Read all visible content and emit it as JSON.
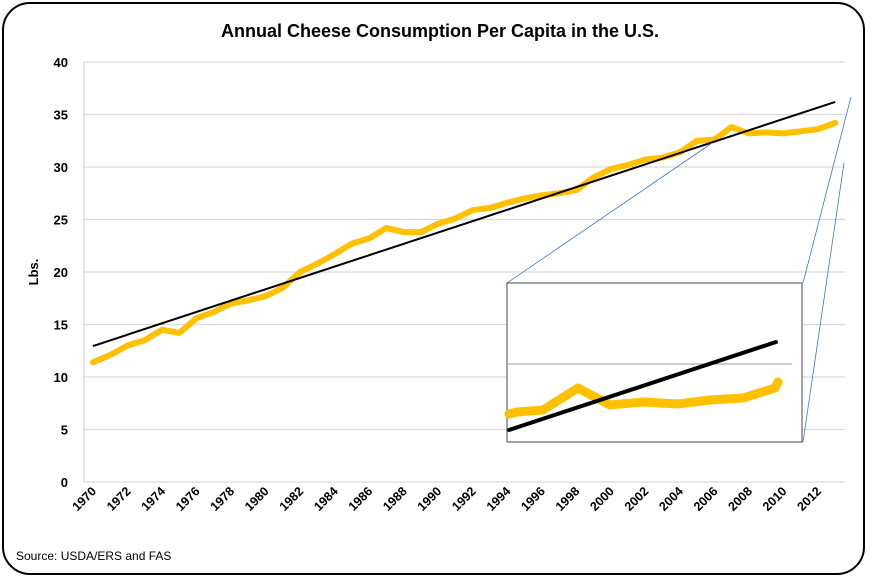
{
  "chart_data": {
    "type": "line",
    "title": "Annual Cheese Consumption Per Capita in the U.S.",
    "xlabel": "",
    "ylabel": "Lbs.",
    "ylim": [
      0,
      40
    ],
    "yticks": [
      0,
      5,
      10,
      15,
      20,
      25,
      30,
      35,
      40
    ],
    "xtick_labels": [
      "1970",
      "1972",
      "1974",
      "1976",
      "1978",
      "1980",
      "1982",
      "1984",
      "1986",
      "1988",
      "1990",
      "1992",
      "1994",
      "1996",
      "1998",
      "2000",
      "2002",
      "2004",
      "2006",
      "2008",
      "2010",
      "2012"
    ],
    "grid": "horizontal",
    "x": [
      1970,
      1971,
      1972,
      1973,
      1974,
      1975,
      1976,
      1977,
      1978,
      1979,
      1980,
      1981,
      1982,
      1983,
      1984,
      1985,
      1986,
      1987,
      1988,
      1989,
      1990,
      1991,
      1992,
      1993,
      1994,
      1995,
      1996,
      1997,
      1998,
      1999,
      2000,
      2001,
      2002,
      2003,
      2004,
      2005,
      2006,
      2007,
      2008,
      2009,
      2010,
      2011,
      2012,
      2013
    ],
    "series": [
      {
        "values": [
          11.4,
          12.1,
          13.0,
          13.5,
          14.5,
          14.2,
          15.6,
          16.2,
          17.0,
          17.3,
          17.7,
          18.5,
          20.0,
          20.8,
          21.7,
          22.7,
          23.2,
          24.2,
          23.8,
          23.8,
          24.6,
          25.1,
          25.9,
          26.1,
          26.6,
          27.0,
          27.3,
          27.5,
          27.8,
          29.0,
          29.8,
          30.2,
          30.7,
          30.9,
          31.4,
          32.5,
          32.6,
          33.8,
          33.2,
          33.3,
          33.2,
          33.4,
          33.6,
          34.2
        ],
        "color": "#FFC000"
      }
    ],
    "trendline": {
      "type": "linear",
      "start": [
        1970,
        12.95
      ],
      "end": [
        2013,
        36.2
      ],
      "color": "#000000"
    },
    "source": "Source: USDA/ERS and FAS"
  }
}
